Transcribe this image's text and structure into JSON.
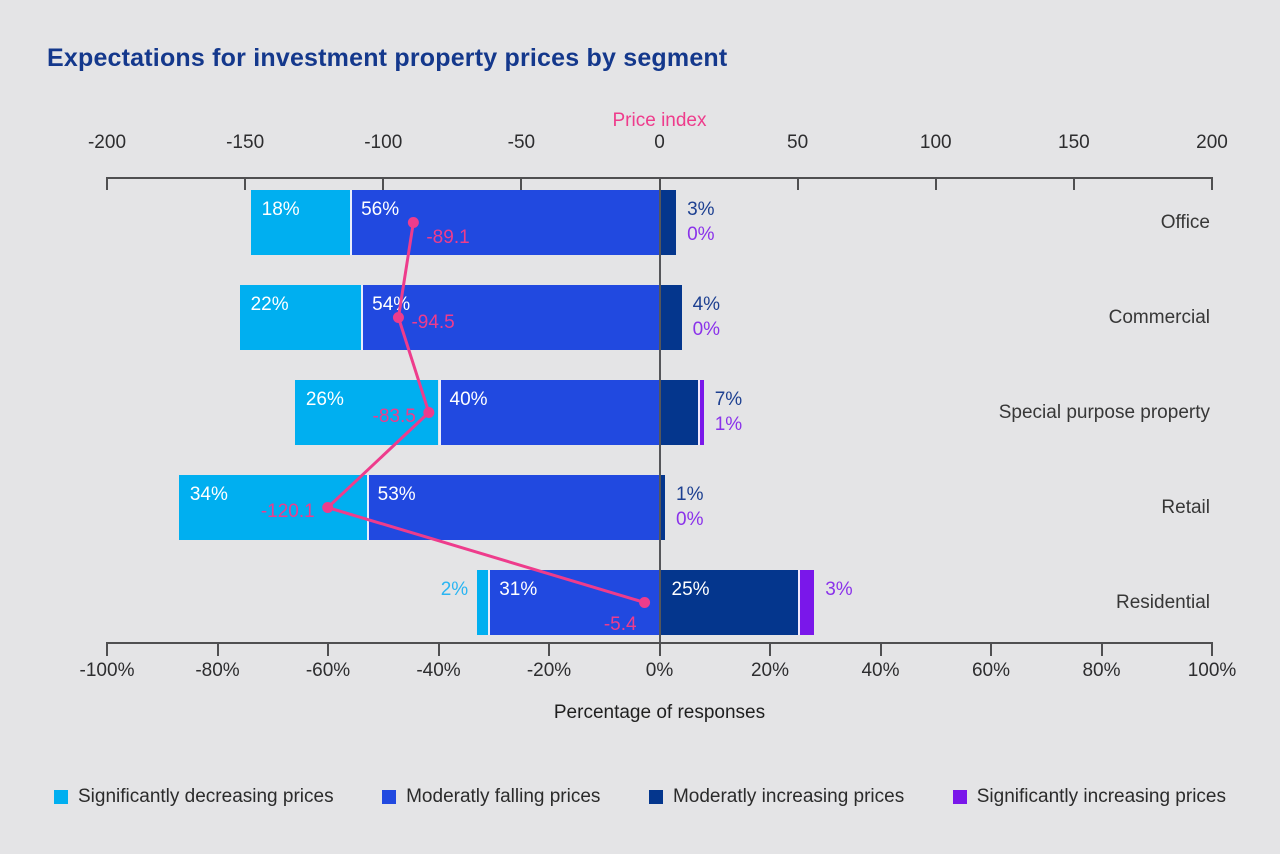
{
  "title": "Expectations for investment property prices by segment",
  "colors": {
    "background": "#E4E4E6",
    "title": "#14388C",
    "pink": "#EE3C8C",
    "axis_line": "#4F4F51",
    "tick_label": "#2D2D2F",
    "category_label": "#373737",
    "axis_caption": "#1F1F1F",
    "zero_line": "#55565A",
    "legend_text": "#2B2B2B",
    "cyan": "#00AFF0",
    "blue": "#2149E0",
    "navy": "#04368D",
    "purple": "#7A17EA",
    "label_navy": "#1D4091",
    "label_purple": "#8A32EA",
    "label_cyan": "#2AB5F2",
    "bar_label_white": "#FFFFFF"
  },
  "top_axis": {
    "label": "Price index",
    "min": -200,
    "max": 200,
    "ticks": [
      -200,
      -150,
      -100,
      -50,
      0,
      50,
      100,
      150,
      200
    ]
  },
  "bottom_axis": {
    "label": "Percentage of responses",
    "min": -100,
    "max": 100,
    "tick_suffix": "%",
    "ticks": [
      -100,
      -80,
      -60,
      -40,
      -20,
      0,
      20,
      40,
      60,
      80,
      100
    ]
  },
  "legend": [
    {
      "label": "Significantly decreasing prices",
      "color_key": "cyan"
    },
    {
      "label": "Moderatly falling prices",
      "color_key": "blue"
    },
    {
      "label": "Moderatly increasing prices",
      "color_key": "navy"
    },
    {
      "label": "Significantly increasing prices",
      "color_key": "purple"
    }
  ],
  "chart_data": {
    "type": "bar",
    "subtype": "diverging-stacked-bar-with-line-overlay",
    "categories": [
      "Office",
      "Commercial",
      "Special purpose property",
      "Retail",
      "Residential"
    ],
    "bar_value_suffix": "%",
    "series": [
      {
        "name": "Significantly decreasing prices",
        "color_key": "cyan",
        "side": "negative",
        "values": [
          18,
          22,
          26,
          34,
          2
        ]
      },
      {
        "name": "Moderatly falling prices",
        "color_key": "blue",
        "side": "negative",
        "values": [
          56,
          54,
          40,
          53,
          31
        ]
      },
      {
        "name": "Moderatly increasing prices",
        "color_key": "navy",
        "side": "positive",
        "values": [
          3,
          4,
          7,
          1,
          25
        ]
      },
      {
        "name": "Significantly increasing prices",
        "color_key": "purple",
        "side": "positive",
        "values": [
          0,
          0,
          1,
          0,
          3
        ]
      }
    ],
    "line": {
      "name": "Price index",
      "color_key": "pink",
      "values": [
        -89.1,
        -94.5,
        -83.5,
        -120.1,
        -5.4
      ],
      "label_placement": [
        "right-down",
        "right",
        "left",
        "left",
        "below-left"
      ]
    },
    "xlabel_bottom": "Percentage of responses",
    "xlabel_top": "Price index",
    "bottom_axis_range": [
      -100,
      100
    ],
    "top_axis_range": [
      -200,
      200
    ],
    "grid": false,
    "legend_position": "bottom"
  }
}
